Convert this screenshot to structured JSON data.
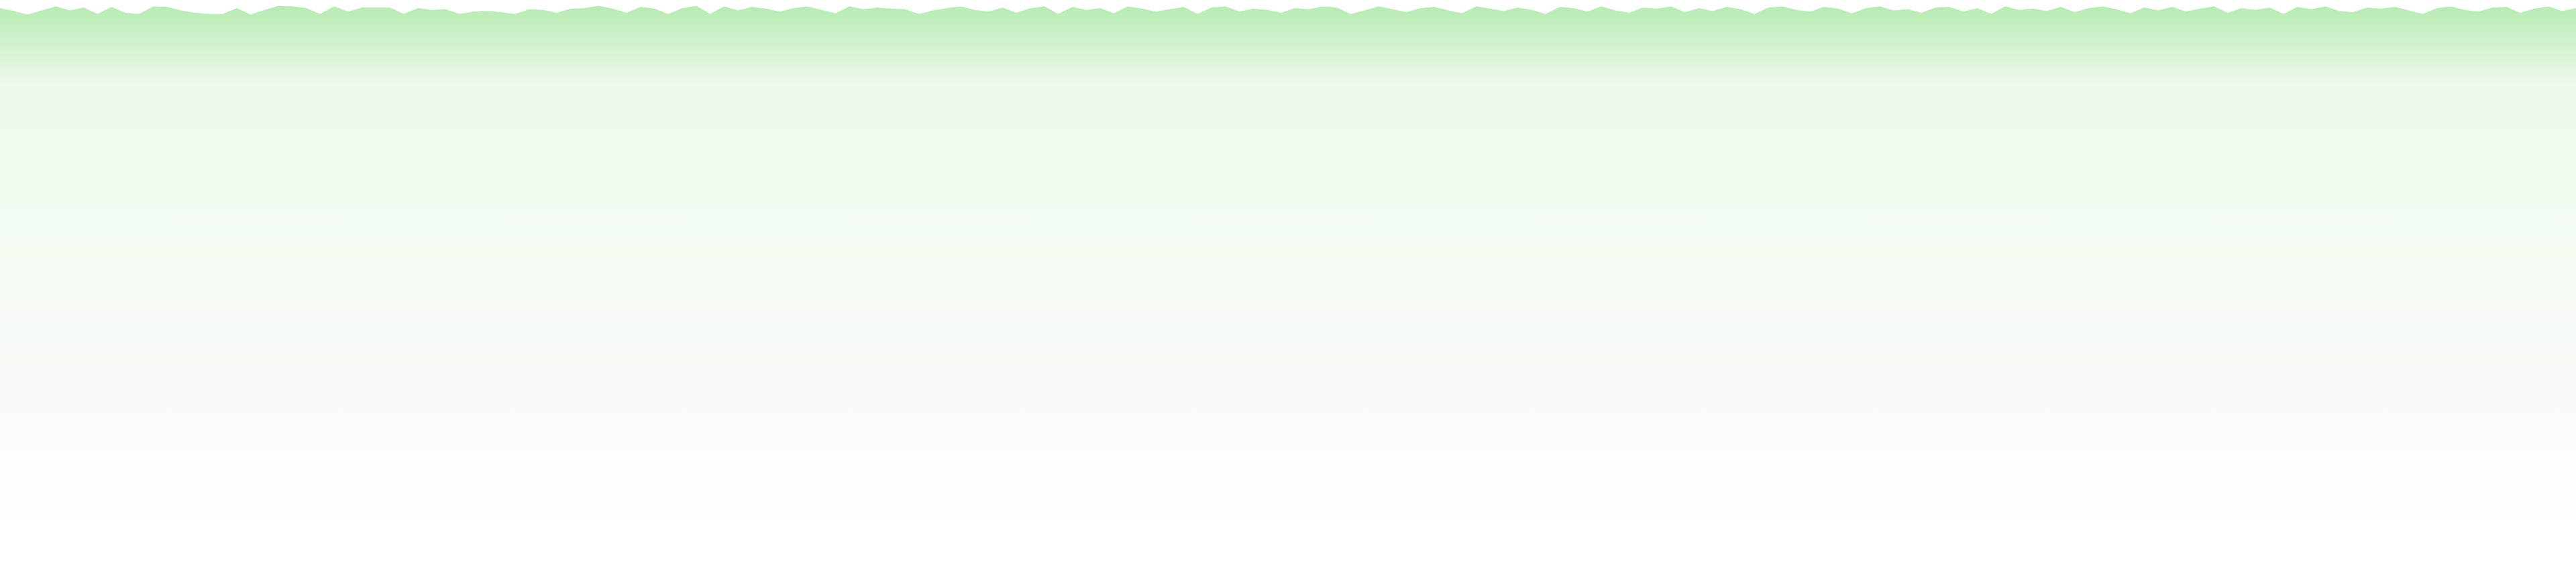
{
  "chart_data": {
    "type": "area",
    "title": "",
    "xlabel": "",
    "ylabel": "",
    "grid": false,
    "legend": "none",
    "ylim": [
      0,
      100
    ],
    "colors": {
      "fill_top": "#b6ebb2",
      "fill_mid": "#eefaec",
      "fill_bottom": "#ffffff"
    },
    "values": [
      98.6,
      98.1,
      97.5,
      98.2,
      98.9,
      98.2,
      98.7,
      97.6,
      98.8,
      97.8,
      97.6,
      98.9,
      98.8,
      98.2,
      97.8,
      97.6,
      97.6,
      98.6,
      97.5,
      98.3,
      99.0,
      98.9,
      98.6,
      97.6,
      98.9,
      98.0,
      98.7,
      98.7,
      98.7,
      97.6,
      98.6,
      98.3,
      98.4,
      97.6,
      98.0,
      98.1,
      97.9,
      97.6,
      98.4,
      98.3,
      97.8,
      98.5,
      98.6,
      99.0,
      98.5,
      97.8,
      98.8,
      98.5,
      97.6,
      98.6,
      99.0,
      97.6,
      98.9,
      98.2,
      98.8,
      98.5,
      98.0,
      98.6,
      98.9,
      98.3,
      97.7,
      98.9,
      98.4,
      98.7,
      98.5,
      98.4,
      97.6,
      98.2,
      98.6,
      98.9,
      98.3,
      98.0,
      98.7,
      97.8,
      98.6,
      98.9,
      97.6,
      98.8,
      98.3,
      98.6,
      97.7,
      98.9,
      98.5,
      98.0,
      98.4,
      98.8,
      97.6,
      98.7,
      98.9,
      98.0,
      98.5,
      98.3,
      97.8,
      98.6,
      98.4,
      98.9,
      98.7,
      97.6,
      98.2,
      98.9,
      98.4,
      97.9,
      98.6,
      98.8,
      98.2,
      97.7,
      98.9,
      98.5,
      98.1,
      98.7,
      98.3,
      97.6,
      98.8,
      98.6,
      98.0,
      98.9,
      98.2,
      97.8,
      98.7,
      98.5,
      98.9,
      97.9,
      98.6,
      98.1,
      98.8,
      98.4,
      97.6,
      98.7,
      98.9,
      98.3,
      98.0,
      98.8,
      98.5,
      97.7,
      98.6,
      98.9,
      98.2,
      98.4,
      97.8,
      98.7,
      98.8,
      98.0,
      98.6,
      97.6,
      98.9,
      98.3,
      98.5,
      98.1,
      98.8,
      97.9,
      98.6,
      98.9,
      98.4,
      97.7,
      98.7,
      98.2,
      98.8,
      98.0,
      98.5,
      98.9,
      97.8,
      98.6,
      98.3,
      98.7,
      97.6,
      98.8,
      98.4,
      98.9,
      98.1,
      97.9,
      98.7,
      98.5,
      98.8,
      98.2,
      97.6,
      98.6,
      98.9,
      98.3,
      98.0,
      98.7,
      98.8,
      97.8,
      98.5,
      98.9,
      98.1,
      98.6
    ]
  }
}
